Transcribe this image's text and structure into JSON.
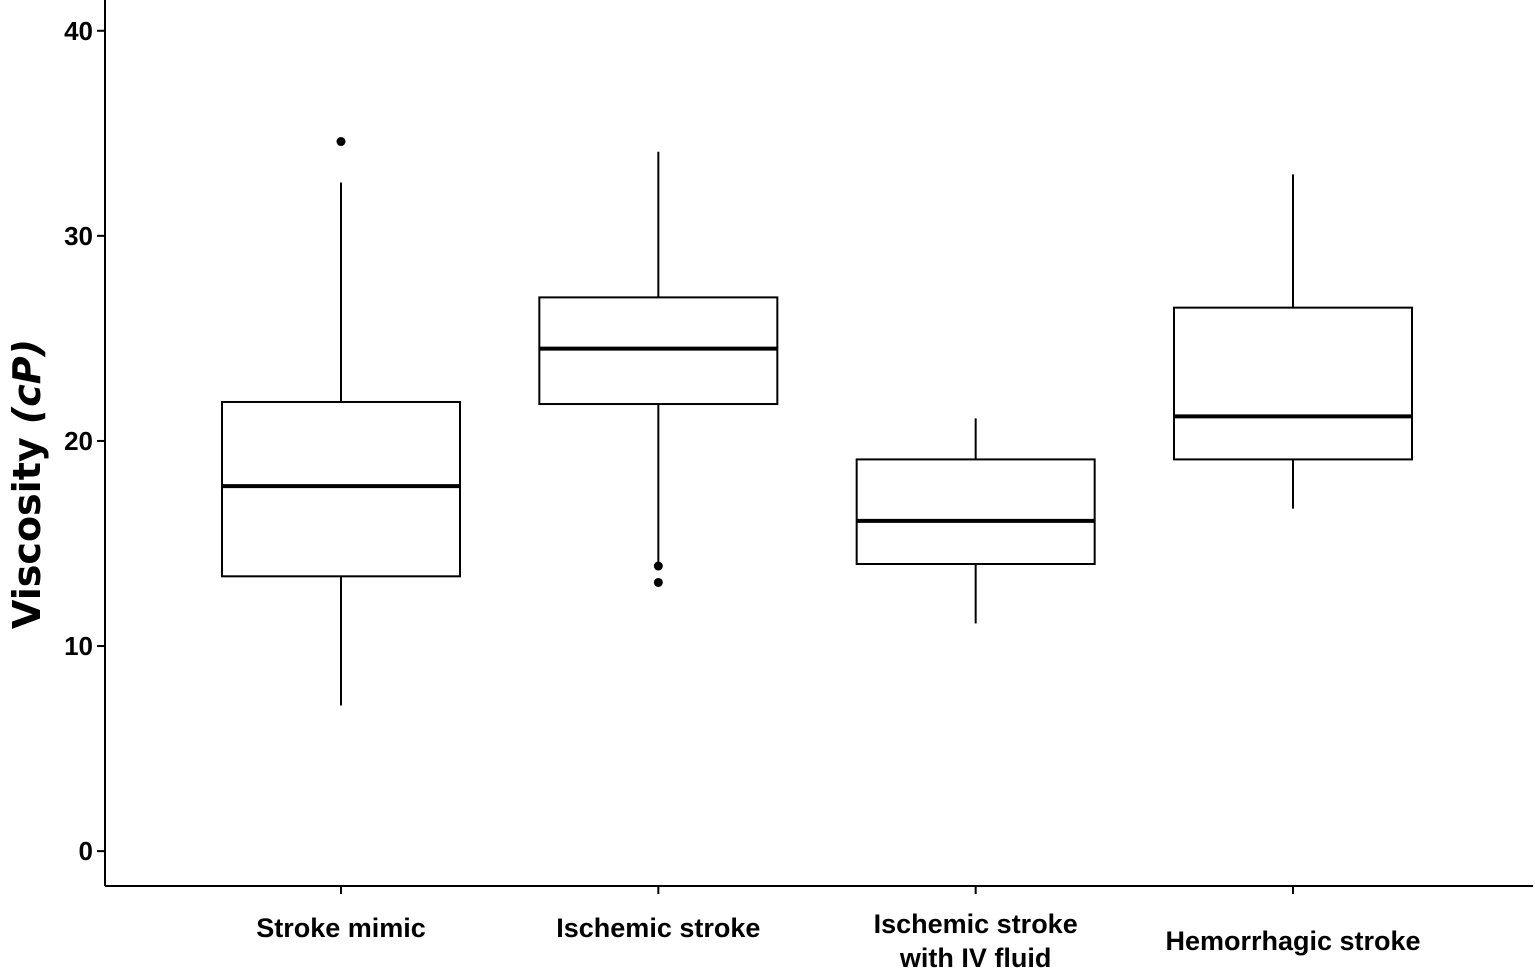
{
  "chart_data": {
    "type": "boxplot",
    "ylabel": "Viscosity (cP)",
    "ylabel_main": "Viscosity ",
    "ylabel_unit": "(cP)",
    "ylim": [
      -1.7,
      41.5
    ],
    "yticks": [
      0,
      10,
      20,
      30,
      40
    ],
    "grid": false,
    "categories": [
      "Stroke mimic",
      "Ischemic stroke",
      "Ischemic stroke with IV fluid",
      "Hemorrhagic stroke"
    ],
    "category_lines": [
      [
        "Stroke mimic"
      ],
      [
        "Ischemic stroke"
      ],
      [
        "Ischemic stroke",
        "with IV fluid"
      ],
      [
        "Hemorrhagic stroke"
      ]
    ],
    "boxes": [
      {
        "category": "Stroke mimic",
        "whisker_low": 7.1,
        "q1": 13.4,
        "median": 17.8,
        "q3": 21.9,
        "whisker_high": 32.6,
        "outliers": [
          34.6
        ]
      },
      {
        "category": "Ischemic stroke",
        "whisker_low": 14.0,
        "q1": 21.8,
        "median": 24.5,
        "q3": 27.0,
        "whisker_high": 34.1,
        "outliers": [
          13.9,
          13.1
        ]
      },
      {
        "category": "Ischemic stroke with IV fluid",
        "whisker_low": 11.1,
        "q1": 14.0,
        "median": 16.1,
        "q3": 19.1,
        "whisker_high": 21.1,
        "outliers": []
      },
      {
        "category": "Hemorrhagic stroke",
        "whisker_low": 16.7,
        "q1": 19.1,
        "median": 21.2,
        "q3": 26.5,
        "whisker_high": 33.0,
        "outliers": []
      }
    ]
  }
}
